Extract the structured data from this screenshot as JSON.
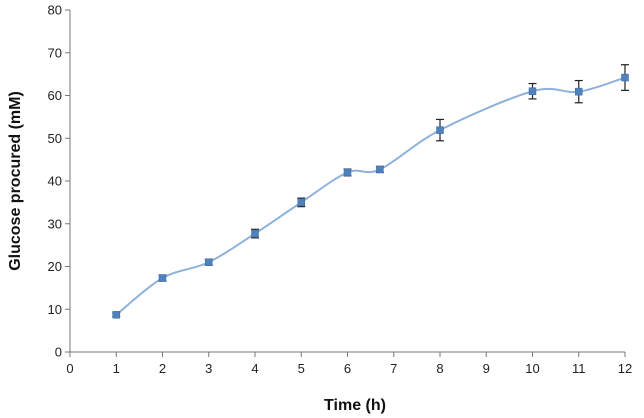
{
  "chart_data": {
    "type": "line",
    "title": "",
    "xlabel": "Time (h)",
    "ylabel": "Glucose procured  (mM)",
    "xlim": [
      0,
      12
    ],
    "ylim": [
      0,
      80
    ],
    "x_ticks": [
      0,
      1,
      2,
      3,
      4,
      5,
      6,
      7,
      8,
      9,
      10,
      11,
      12
    ],
    "y_ticks": [
      0,
      10,
      20,
      30,
      40,
      50,
      60,
      70,
      80
    ],
    "grid": false,
    "legend": "none",
    "series": [
      {
        "color": "#4f81bd",
        "line_color": "#8fb2dd",
        "x": [
          1,
          2,
          3,
          4,
          5,
          6,
          6.7,
          8,
          10,
          11,
          12
        ],
        "y": [
          8.7,
          17.3,
          21.0,
          27.7,
          35.0,
          42.0,
          42.7,
          51.9,
          61.0,
          60.9,
          64.2
        ],
        "error": [
          0.4,
          0.7,
          0.7,
          1.0,
          1.0,
          0.8,
          0.7,
          2.5,
          1.8,
          2.6,
          3.0
        ]
      }
    ]
  }
}
